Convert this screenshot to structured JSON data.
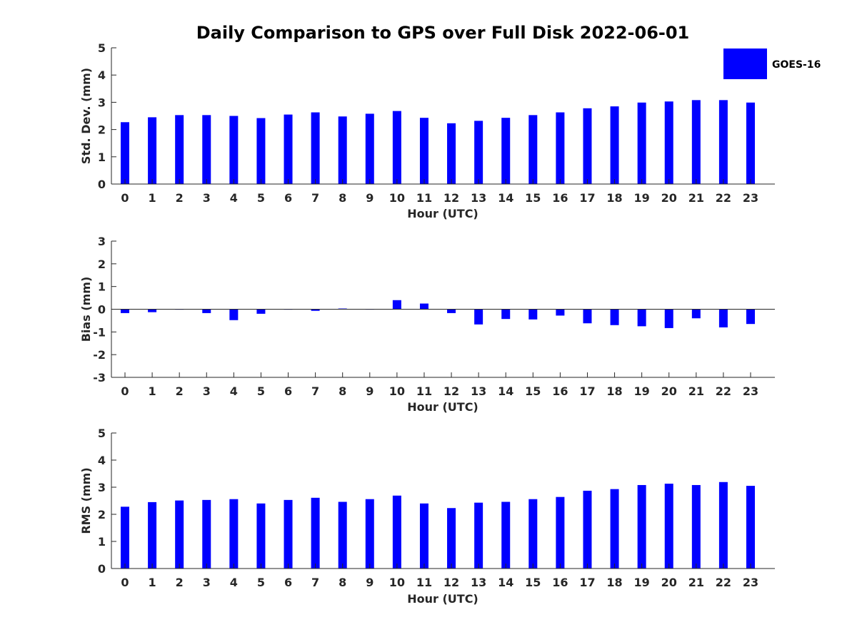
{
  "chart_data": {
    "title": "Daily Comparison to GPS over Full Disk 2022-06-01",
    "legend": {
      "entries": [
        "GOES-16"
      ],
      "location": "top-right",
      "color": "#0000ff"
    },
    "panels": [
      {
        "type": "bar",
        "ylabel": "Std. Dev. (mm)",
        "xlabel": "Hour (UTC)",
        "ylim": [
          0,
          5
        ],
        "yticks": [
          "0",
          "1",
          "2",
          "3",
          "4",
          "5"
        ],
        "categories": [
          "0",
          "1",
          "2",
          "3",
          "4",
          "5",
          "6",
          "7",
          "8",
          "9",
          "10",
          "11",
          "12",
          "13",
          "14",
          "15",
          "16",
          "17",
          "18",
          "19",
          "20",
          "21",
          "22",
          "23"
        ],
        "series": [
          {
            "name": "GOES-16",
            "color": "#0000ff",
            "values": [
              2.27,
              2.45,
              2.53,
              2.53,
              2.5,
              2.42,
              2.55,
              2.63,
              2.48,
              2.58,
              2.68,
              2.43,
              2.23,
              2.32,
              2.43,
              2.53,
              2.63,
              2.78,
              2.85,
              2.99,
              3.03,
              3.08,
              3.08,
              2.99
            ]
          }
        ]
      },
      {
        "type": "bar",
        "ylabel": "Bias (mm)",
        "xlabel": "Hour (UTC)",
        "ylim": [
          -3,
          3
        ],
        "yticks": [
          "-3",
          "-2",
          "-1",
          "0",
          "1",
          "2",
          "3"
        ],
        "categories": [
          "0",
          "1",
          "2",
          "3",
          "4",
          "5",
          "6",
          "7",
          "8",
          "9",
          "10",
          "11",
          "12",
          "13",
          "14",
          "15",
          "16",
          "17",
          "18",
          "19",
          "20",
          "21",
          "22",
          "23"
        ],
        "series": [
          {
            "name": "GOES-16",
            "color": "#0000ff",
            "values": [
              -0.17,
              -0.13,
              -0.02,
              -0.17,
              -0.48,
              -0.2,
              -0.02,
              -0.07,
              0.03,
              0.0,
              0.4,
              0.25,
              -0.17,
              -0.67,
              -0.43,
              -0.45,
              -0.28,
              -0.62,
              -0.7,
              -0.75,
              -0.83,
              -0.4,
              -0.8,
              -0.65
            ]
          }
        ]
      },
      {
        "type": "bar",
        "ylabel": "RMS (mm)",
        "xlabel": "Hour (UTC)",
        "ylim": [
          0,
          5
        ],
        "yticks": [
          "0",
          "1",
          "2",
          "3",
          "4",
          "5"
        ],
        "categories": [
          "0",
          "1",
          "2",
          "3",
          "4",
          "5",
          "6",
          "7",
          "8",
          "9",
          "10",
          "11",
          "12",
          "13",
          "14",
          "15",
          "16",
          "17",
          "18",
          "19",
          "20",
          "21",
          "22",
          "23"
        ],
        "series": [
          {
            "name": "GOES-16",
            "color": "#0000ff",
            "values": [
              2.28,
              2.45,
              2.51,
              2.53,
              2.56,
              2.4,
              2.53,
              2.61,
              2.46,
              2.56,
              2.69,
              2.4,
              2.23,
              2.43,
              2.46,
              2.56,
              2.64,
              2.87,
              2.93,
              3.08,
              3.13,
              3.08,
              3.19,
              3.05
            ]
          }
        ]
      }
    ]
  }
}
